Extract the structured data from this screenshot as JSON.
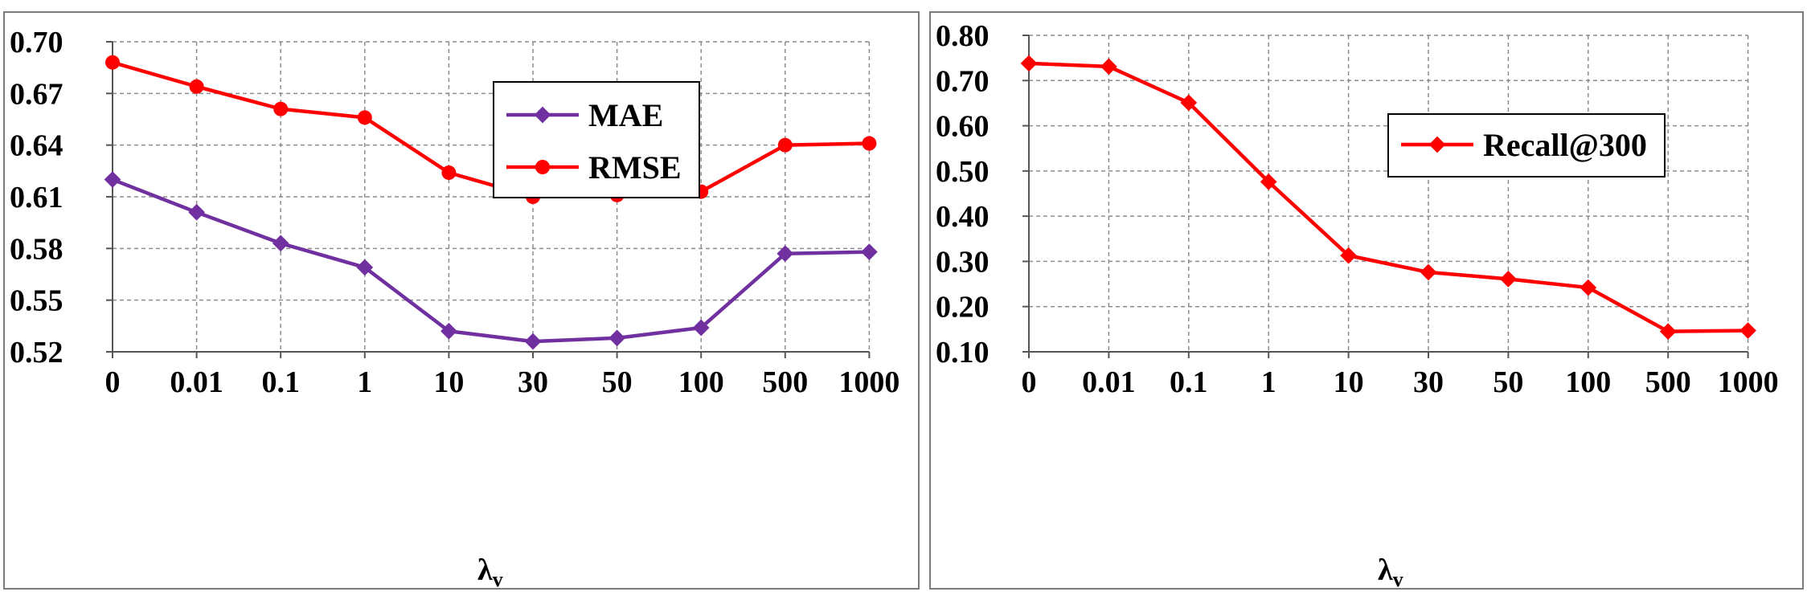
{
  "chart_data": [
    {
      "type": "line",
      "categories": [
        "0",
        "0.01",
        "0.1",
        "1",
        "10",
        "30",
        "50",
        "100",
        "500",
        "1000"
      ],
      "xlabel": "λ",
      "xlabel_sub": "v",
      "ylabel": "",
      "ylim": [
        0.52,
        0.7
      ],
      "yticks": [
        "0.70",
        "0.67",
        "0.64",
        "0.61",
        "0.58",
        "0.55",
        "0.52"
      ],
      "ytick_values": [
        0.7,
        0.67,
        0.64,
        0.61,
        0.58,
        0.55,
        0.52
      ],
      "grid": true,
      "legend_position": "top-right",
      "series": [
        {
          "name": "MAE",
          "color": "#7030a0",
          "marker": "diamond",
          "values": [
            0.62,
            0.601,
            0.583,
            0.569,
            0.532,
            0.526,
            0.528,
            0.534,
            0.577,
            0.578
          ]
        },
        {
          "name": "RMSE",
          "color": "#ff0000",
          "marker": "circle",
          "values": [
            0.688,
            0.674,
            0.661,
            0.656,
            0.624,
            0.61,
            0.611,
            0.613,
            0.64,
            0.641
          ]
        }
      ]
    },
    {
      "type": "line",
      "categories": [
        "0",
        "0.01",
        "0.1",
        "1",
        "10",
        "30",
        "50",
        "100",
        "500",
        "1000"
      ],
      "xlabel": "λ",
      "xlabel_sub": "v",
      "ylabel": "",
      "ylim": [
        0.1,
        0.8
      ],
      "yticks": [
        "0.80",
        "0.70",
        "0.60",
        "0.50",
        "0.40",
        "0.30",
        "0.20",
        "0.10"
      ],
      "ytick_values": [
        0.8,
        0.7,
        0.6,
        0.5,
        0.4,
        0.3,
        0.2,
        0.1
      ],
      "grid": true,
      "legend_position": "top-right",
      "series": [
        {
          "name": "Recall@300",
          "color": "#ff0000",
          "marker": "diamond",
          "values": [
            0.738,
            0.731,
            0.651,
            0.476,
            0.313,
            0.276,
            0.261,
            0.242,
            0.145,
            0.147
          ]
        }
      ]
    }
  ]
}
